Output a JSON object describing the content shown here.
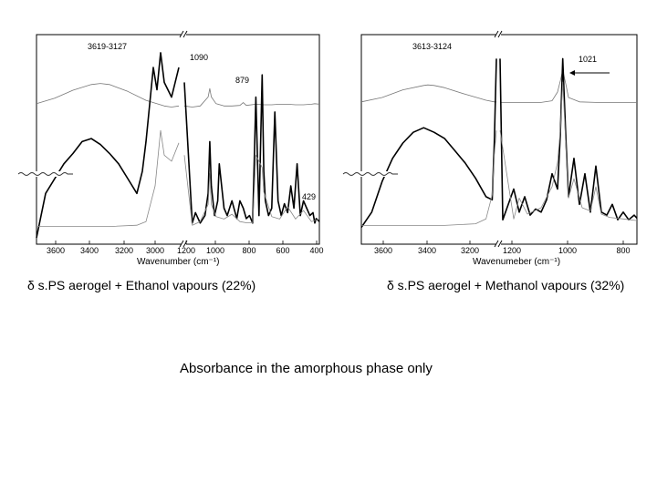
{
  "captions": {
    "left": "δ s.PS aerogel + Ethanol vapours (22%)",
    "right": "δ s.PS aerogel + Methanol vapours (32%)"
  },
  "note": "Absorbance in the amorphous phase only",
  "chart_data": [
    {
      "type": "line",
      "xlabel": "Wavenumber (cm⁻¹)",
      "ylabel": "",
      "x_ticks": [
        "3600",
        "3400",
        "3200",
        "3000",
        "1200",
        "1000",
        "800",
        "600",
        "400"
      ],
      "axis_break": "between 2900 and 1250 cm⁻¹",
      "annotations": [
        "3619-3127",
        "1090",
        "879",
        "429"
      ],
      "legend_text": "",
      "series": [
        {
          "style": "thin gray (difference spectrum, amorphous phase)",
          "x": [
            3700,
            3600,
            3500,
            3400,
            3350,
            3300,
            3200,
            3100,
            3000,
            2960,
            2920,
            1250,
            1200,
            1150,
            1100,
            1090,
            1080,
            1050,
            1000,
            950,
            900,
            879,
            860,
            800,
            750,
            700,
            650,
            600,
            550,
            500,
            450,
            429,
            400
          ],
          "y": [
            0.18,
            0.28,
            0.42,
            0.52,
            0.54,
            0.52,
            0.4,
            0.24,
            0.14,
            0.12,
            0.14,
            0.14,
            0.12,
            0.14,
            0.3,
            0.45,
            0.3,
            0.18,
            0.14,
            0.14,
            0.15,
            0.2,
            0.15,
            0.17,
            0.16,
            0.16,
            0.17,
            0.17,
            0.16,
            0.16,
            0.17,
            0.18,
            0.17
          ]
        },
        {
          "style": "thick black (sample spectrum)",
          "x": [
            3700,
            3650,
            3600,
            3550,
            3500,
            3450,
            3400,
            3350,
            3300,
            3250,
            3200,
            3150,
            3120,
            3100,
            3080,
            3060,
            3040,
            3020,
            3000,
            2960,
            2920,
            1250,
            1200,
            1180,
            1150,
            1120,
            1100,
            1090,
            1080,
            1060,
            1040,
            1030,
            1000,
            980,
            950,
            920,
            900,
            879,
            860,
            840,
            820,
            800,
            780,
            760,
            750,
            740,
            720,
            700,
            680,
            660,
            640,
            620,
            600,
            580,
            560,
            540,
            520,
            500,
            480,
            460,
            440,
            429,
            420,
            400
          ],
          "y": [
            -0.05,
            0.25,
            0.35,
            0.45,
            0.52,
            0.6,
            0.62,
            0.58,
            0.52,
            0.45,
            0.35,
            0.25,
            0.4,
            0.6,
            0.85,
            1.1,
            0.95,
            1.2,
            1.0,
            0.9,
            1.1,
            1.0,
            0.05,
            0.12,
            0.05,
            0.1,
            0.25,
            0.6,
            0.3,
            0.1,
            0.2,
            0.45,
            0.15,
            0.1,
            0.2,
            0.08,
            0.2,
            0.15,
            0.08,
            0.1,
            0.05,
            0.9,
            0.1,
            1.05,
            0.4,
            0.2,
            0.1,
            0.15,
            0.8,
            0.2,
            0.1,
            0.18,
            0.12,
            0.3,
            0.15,
            0.45,
            0.1,
            0.2,
            0.15,
            0.1,
            0.12,
            0.05,
            0.08,
            0.06
          ]
        },
        {
          "style": "thin gray (reference spectrum)",
          "x": [
            3700,
            3500,
            3300,
            3150,
            3100,
            3050,
            3020,
            3000,
            2960,
            2920,
            1250,
            1200,
            1150,
            1100,
            1090,
            1080,
            1050,
            1000,
            950,
            900,
            860,
            820,
            800,
            760,
            750,
            700,
            650,
            600,
            550,
            500,
            450,
            400
          ],
          "y": [
            0.02,
            0.02,
            0.02,
            0.03,
            0.06,
            0.35,
            0.8,
            0.6,
            0.55,
            0.7,
            0.6,
            0.03,
            0.06,
            0.2,
            0.45,
            0.2,
            0.1,
            0.08,
            0.12,
            0.06,
            0.05,
            0.05,
            0.6,
            0.5,
            0.3,
            0.1,
            0.08,
            0.18,
            0.08,
            0.15,
            0.06,
            0.08
          ]
        }
      ]
    },
    {
      "type": "line",
      "xlabel": "Wavenumeber (cm⁻¹)",
      "ylabel": "",
      "x_ticks": [
        "3600",
        "3400",
        "3200",
        "1200",
        "1000",
        "800"
      ],
      "axis_break": "between 3050 and 1250 cm⁻¹",
      "annotations": [
        "3613-3124",
        "1021"
      ],
      "legend_text": "",
      "series": [
        {
          "style": "thin gray (difference spectrum, amorphous phase)",
          "x": [
            3700,
            3600,
            3500,
            3400,
            3380,
            3350,
            3300,
            3200,
            3100,
            3060,
            3050,
            1250,
            1200,
            1100,
            1060,
            1040,
            1030,
            1021,
            1010,
            1000,
            960,
            900,
            850,
            800,
            750
          ],
          "y": [
            0.22,
            0.3,
            0.44,
            0.52,
            0.53,
            0.52,
            0.48,
            0.36,
            0.25,
            0.22,
            0.22,
            0.21,
            0.21,
            0.21,
            0.24,
            0.4,
            0.6,
            0.8,
            0.55,
            0.3,
            0.22,
            0.21,
            0.21,
            0.21,
            0.21
          ]
        },
        {
          "style": "thick black (sample spectrum)",
          "x": [
            3700,
            3650,
            3600,
            3550,
            3500,
            3450,
            3400,
            3350,
            3300,
            3250,
            3200,
            3150,
            3100,
            3070,
            3060,
            3050,
            1250,
            1240,
            1200,
            1180,
            1160,
            1140,
            1120,
            1100,
            1080,
            1060,
            1040,
            1030,
            1021,
            1010,
            1000,
            980,
            960,
            940,
            920,
            900,
            880,
            860,
            840,
            820,
            800,
            780,
            760,
            750
          ],
          "y": [
            0.0,
            0.1,
            0.3,
            0.45,
            0.55,
            0.62,
            0.65,
            0.62,
            0.58,
            0.5,
            0.42,
            0.32,
            0.2,
            0.18,
            0.55,
            1.1,
            1.1,
            0.05,
            0.25,
            0.1,
            0.2,
            0.08,
            0.12,
            0.1,
            0.18,
            0.35,
            0.25,
            0.6,
            1.1,
            0.6,
            0.2,
            0.45,
            0.15,
            0.35,
            0.1,
            0.4,
            0.1,
            0.08,
            0.15,
            0.05,
            0.1,
            0.05,
            0.08,
            0.06
          ]
        },
        {
          "style": "thin gray (reference spectrum)",
          "x": [
            3700,
            3500,
            3300,
            3150,
            3100,
            3070,
            3060,
            3050,
            1250,
            1200,
            1180,
            1150,
            1100,
            1060,
            1040,
            1030,
            1021,
            1000,
            980,
            950,
            920,
            900,
            880,
            850,
            800,
            750
          ],
          "y": [
            0.01,
            0.01,
            0.01,
            0.02,
            0.05,
            0.2,
            0.45,
            0.6,
            0.6,
            0.05,
            0.18,
            0.08,
            0.12,
            0.25,
            0.4,
            0.6,
            0.9,
            0.18,
            0.3,
            0.12,
            0.1,
            0.25,
            0.08,
            0.06,
            0.05,
            0.04
          ]
        }
      ]
    }
  ]
}
